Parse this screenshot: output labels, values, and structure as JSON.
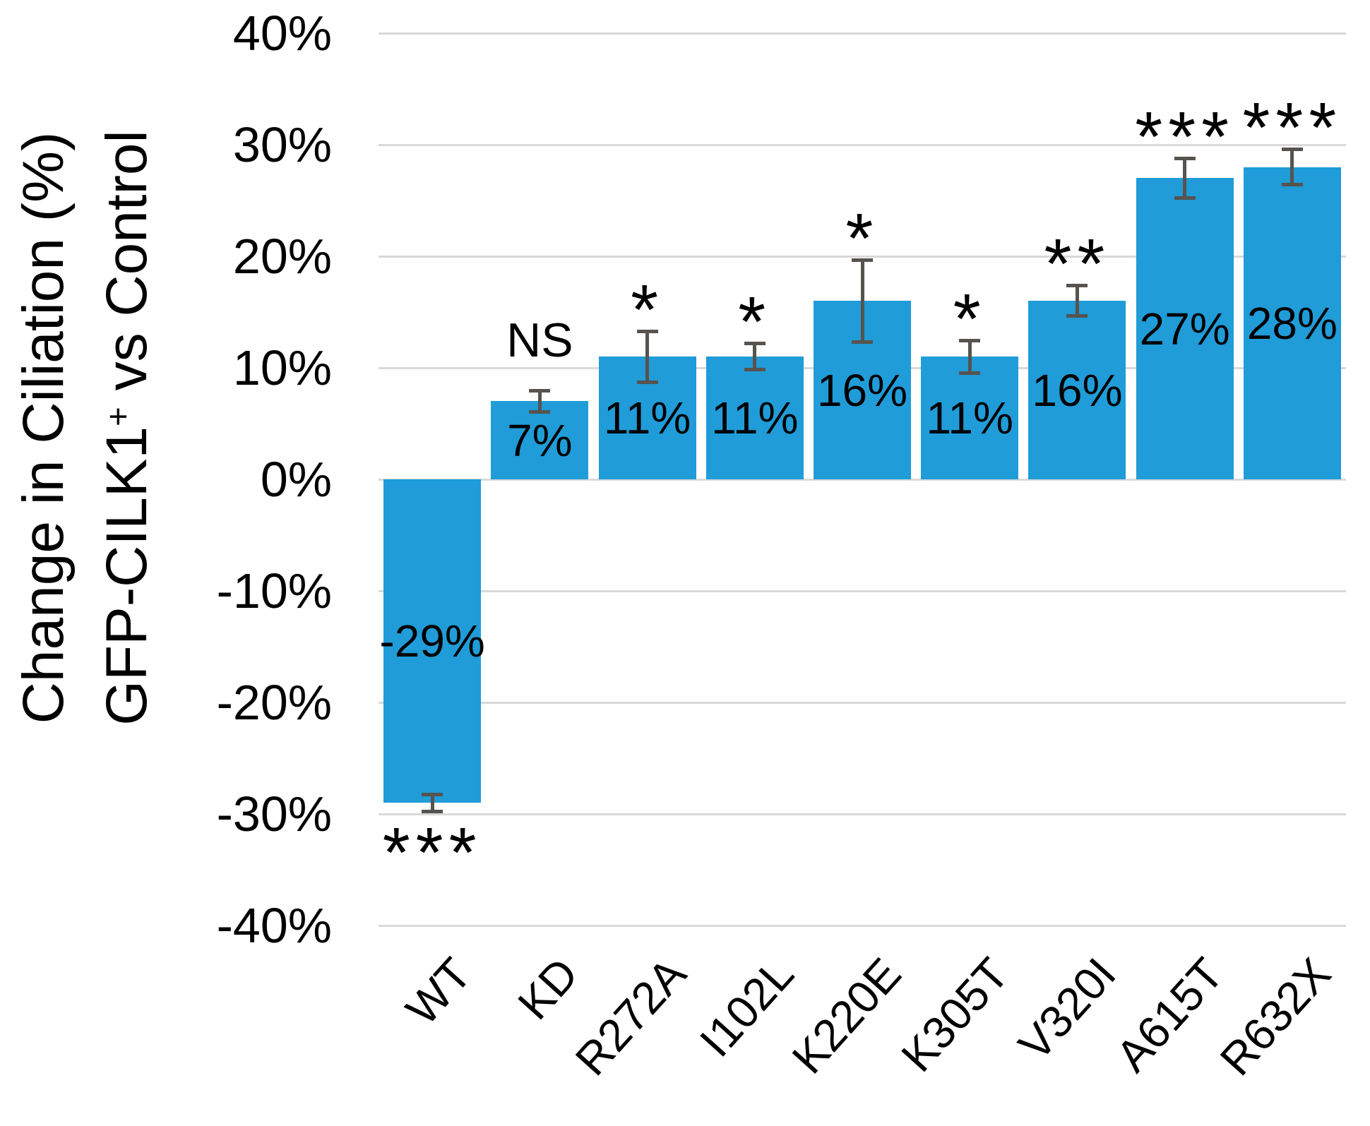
{
  "chart_data": {
    "type": "bar",
    "title": "",
    "ylabel_line1": "Change in Ciliation (%)",
    "ylabel_line2": {
      "prefix": "GFP-CILK1",
      "sup": "+",
      "suffix": " vs Control"
    },
    "categories": [
      "WT",
      "KD",
      "R272A",
      "I102L",
      "K220E",
      "K305T",
      "V320I",
      "A615T",
      "R632X"
    ],
    "values": [
      -29,
      7,
      11,
      11,
      16,
      11,
      16,
      27,
      28
    ],
    "data_labels": [
      "-29%",
      "7%",
      "11%",
      "11%",
      "16%",
      "11%",
      "16%",
      "27%",
      "28%"
    ],
    "errors": [
      0.8,
      1.0,
      2.3,
      1.2,
      3.7,
      1.5,
      1.4,
      1.8,
      1.6
    ],
    "significance": [
      {
        "label": "***",
        "position": "below",
        "style": "asterisk"
      },
      {
        "label": "NS",
        "position": "above",
        "style": "text"
      },
      {
        "label": "*",
        "position": "above",
        "style": "asterisk"
      },
      {
        "label": "*",
        "position": "above",
        "style": "asterisk"
      },
      {
        "label": "*",
        "position": "above",
        "style": "asterisk"
      },
      {
        "label": "*",
        "position": "above",
        "style": "asterisk"
      },
      {
        "label": "**",
        "position": "above",
        "style": "asterisk"
      },
      {
        "label": "***",
        "position": "above",
        "style": "asterisk"
      },
      {
        "label": "***",
        "position": "above",
        "style": "asterisk"
      }
    ],
    "y_axis": {
      "ylim": [
        -40,
        40
      ],
      "gridlines": true,
      "ticks": [
        {
          "label": "40%",
          "value": 40
        },
        {
          "label": "30%",
          "value": 30
        },
        {
          "label": "20%",
          "value": 20
        },
        {
          "label": "10%",
          "value": 10
        },
        {
          "label": "0%",
          "value": 0
        },
        {
          "label": "-10%",
          "value": -10
        },
        {
          "label": "-20%",
          "value": -20
        },
        {
          "label": "-30%",
          "value": -30
        },
        {
          "label": "-40%",
          "value": -40
        }
      ]
    },
    "legend": null,
    "colors": {
      "bar": "#209CD8",
      "error_bar": "#57534E",
      "gridline": "#D9D9D9",
      "text": "#000000",
      "background": "#FFFFFF"
    }
  }
}
